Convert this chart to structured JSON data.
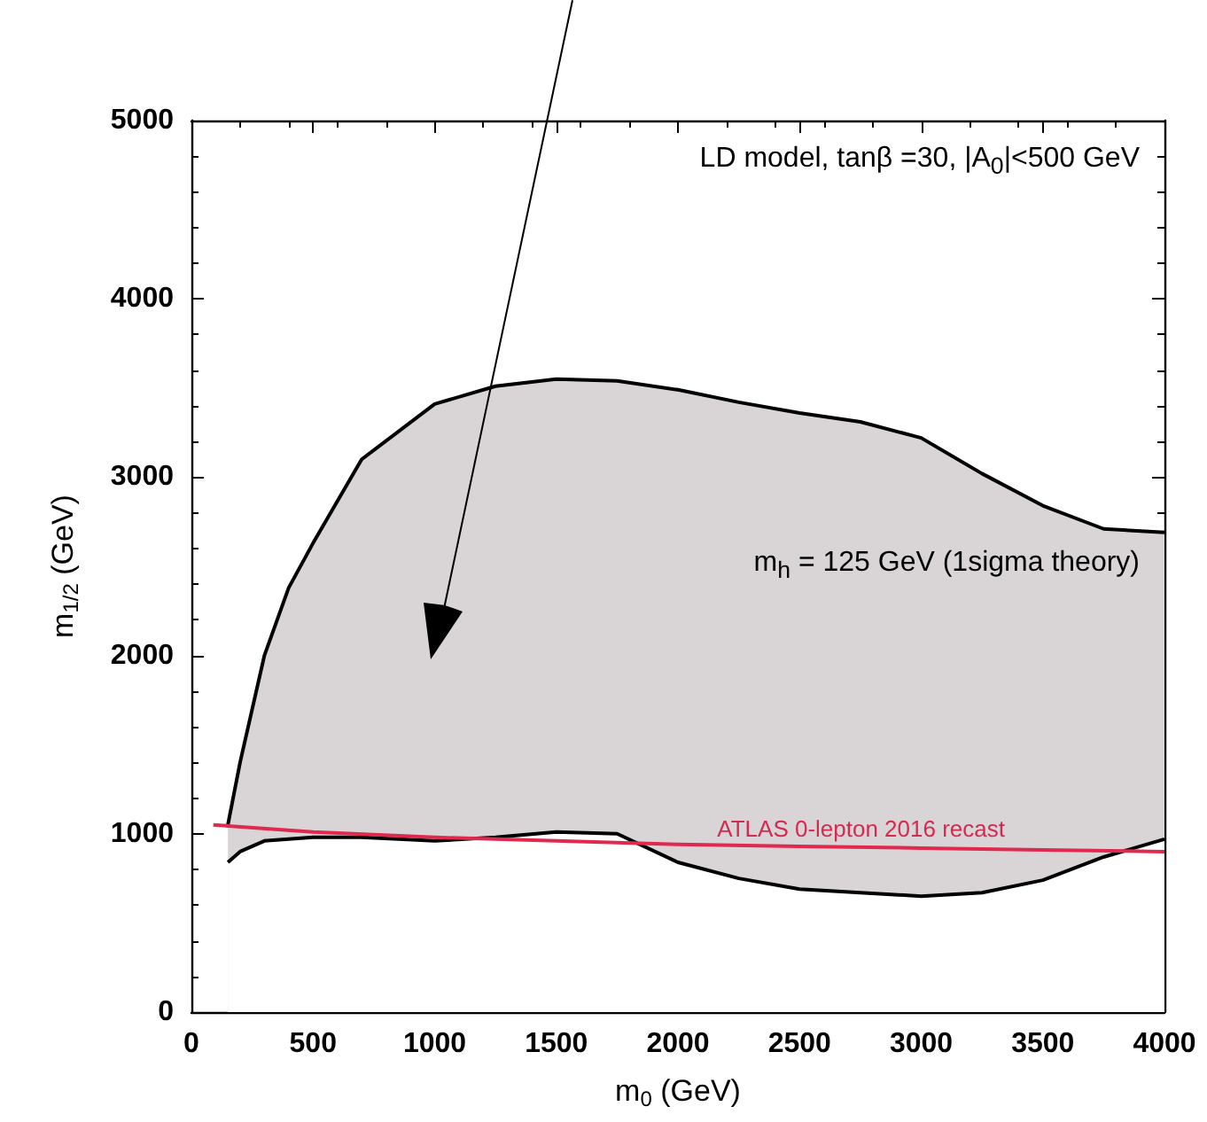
{
  "chart_data": {
    "type": "line",
    "xlabel": "m$_{0}$ (GeV)",
    "ylabel": "m$_{1/2}$ (GeV)",
    "xlim": [
      0,
      4000
    ],
    "xticks": [
      0,
      500,
      1000,
      1500,
      2000,
      2500,
      3000,
      3500,
      4000
    ],
    "ylim": [
      0,
      5000
    ],
    "yticks": [
      0,
      1000,
      2000,
      3000,
      4000,
      5000
    ],
    "marker": "none",
    "line_style": "solid",
    "series": [
      {
        "type": "area",
        "color": "#d9d5d7",
        "x": [
          150,
          200,
          300,
          400,
          500,
          700,
          1000,
          1250,
          1500,
          1750,
          2000,
          2250,
          2500,
          2750,
          3000,
          3250,
          3500,
          3750,
          4000
        ],
        "values": [
          1050,
          1400,
          2000,
          2380,
          2630,
          3100,
          3410,
          3510,
          3550,
          3540,
          3490,
          3420,
          3360,
          3310,
          3220,
          3020,
          2840,
          2710,
          2690
        ]
      },
      {
        "type": "area",
        "color": "#ffffff",
        "x": [
          150,
          200,
          300,
          400,
          500,
          700,
          1000,
          1250,
          1500,
          1750,
          2000,
          2250,
          2500,
          2750,
          3000,
          3250,
          3500,
          3750,
          4000
        ],
        "values": [
          840,
          900,
          960,
          970,
          980,
          980,
          960,
          980,
          1010,
          1000,
          840,
          750,
          690,
          670,
          650,
          670,
          740,
          870,
          970
        ]
      },
      {
        "color": "#e0294f",
        "x": [
          90,
          500,
          1000,
          1500,
          2000,
          2500,
          3000,
          3500,
          4000
        ],
        "values": [
          1050,
          1010,
          980,
          960,
          940,
          930,
          920,
          910,
          900
        ]
      }
    ],
    "annotations": [
      "LD model, tanβ =30, |A$_{0}$|<500 GeV",
      "m$_{h}$ = 125 GeV (1sigma theory)",
      "ATLAS 0-lepton 2016 recast"
    ]
  }
}
